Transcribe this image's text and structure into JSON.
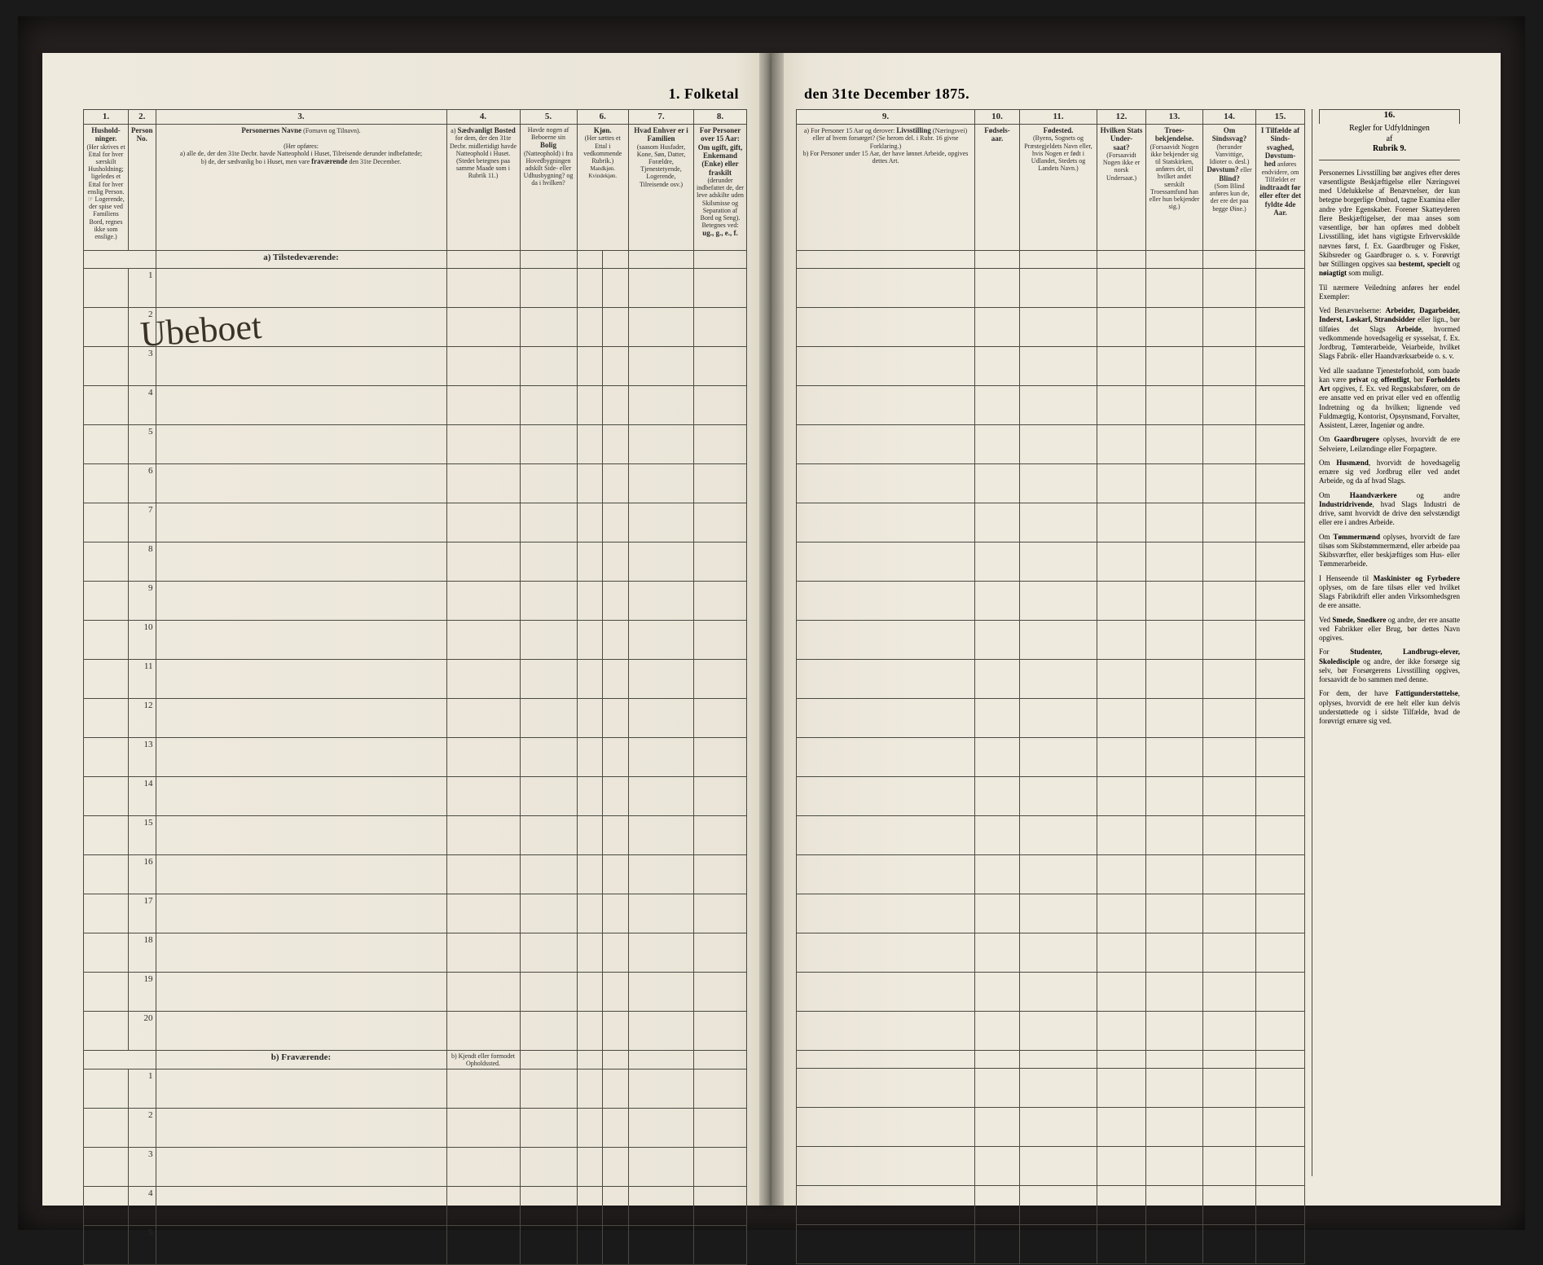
{
  "document": {
    "title_left": "1. Folketal",
    "title_right": "den 31te December 1875.",
    "handwritten_note": "Ubeboet"
  },
  "colors": {
    "paper": "#efeade",
    "ink": "#2a2a2a",
    "rule": "#4a4a42",
    "frame": "#1a1a1a"
  },
  "left_columns": [
    {
      "num": "1.",
      "head_html": "<b>Hushold-<br>ninger.</b><br>(Her skrives et Ettal for hver særskilt Husholdning; ligeledes et Ettal for hver enslig Person.<br>☞ Logerende, der spise ved Familiens Bord, regnes ikke som enslige.)",
      "w": "55"
    },
    {
      "num": "2.",
      "head_html": "<b>Person<br>No.</b>",
      "w": "26"
    },
    {
      "num": "3.",
      "head_html": "<b>Personernes Navne</b> (Fornavn og Tilnavn).<br><br>(Her opføres:<br>a) alle de, der den 31te Decbr. havde Natteophold i Huset, Tilreisende derunder indbefattede;<br>b) de, der sædvanlig bo i Huset, men vare <b>fraværende</b> den 31te December.",
      "w": "auto"
    },
    {
      "num": "4.",
      "head_html": "a) <b>Sædvanligt Bosted</b> for dem, der den 31te Decbr. midlertidigt havde Natteophold i Huset.<br>(Stedet betegnes paa samme Maade som i Rubrik 11.)",
      "w": "90"
    },
    {
      "num": "5.",
      "head_html": "Havde nogen af Beboerne sin <b>Bolig</b> (Natteophold) i fra Hovedbygningen adskilt Side- eller Udhusbygning? og da i hvilken?",
      "w": "70"
    },
    {
      "num": "6.",
      "head_html": "<b>Kjøn.</b><br>(Her sættes et Ettal i vedkommende Rubrik.)<br><span style='font-size:7px'>Mandkjøn. Kvindekjøn.</span>",
      "w": "50"
    },
    {
      "num": "7.",
      "head_html": "<b>Hvad Enhver er i Familien</b><br>(saasom Husfader, Kone, Søn, Datter, Forældre, Tjenestetyende, Logerende, Tilreisende osv.)",
      "w": "80"
    },
    {
      "num": "8.",
      "head_html": "<b>For Personer over 15 Aar: Om ugift, gift, Enkemand (Enke) eller fraskilt</b> (derunder indbefattet de, der leve adskilte uden Skilsmisse og Separation af Bord og Seng).<br>Betegnes ved:<br><b>ug., g., e., f.</b>",
      "w": "65"
    }
  ],
  "right_columns": [
    {
      "num": "9.",
      "head_html": "a) For Personer 15 Aar og derover: <b>Livsstilling</b> (Næringsvei) eller af hvem forsørget? (Se herom del. i Rubr. 16 givne Forklaring.)<br>b) For Personer under 15 Aar, der have lønnet Arbeide, opgives dettes Art.",
      "w": "auto"
    },
    {
      "num": "10.",
      "head_html": "<b>Fødsels-<br>aar.</b>",
      "w": "55"
    },
    {
      "num": "11.",
      "head_html": "<b>Fødested.</b><br>(Byens, Sognets og Præstegjeldets Navn eller, hvis Nogen er født i Udlandet, Stedets og Landets Navn.)",
      "w": "95"
    },
    {
      "num": "12.",
      "head_html": "<b>Hvilken Stats Under-<br>saat?</b><br>(Forsaavidt Nogen ikke er norsk Undersaat.)",
      "w": "60"
    },
    {
      "num": "13.",
      "head_html": "<b>Troes-<br>bekjendelse.</b><br>(Forsaavidt Nogen ikke bekjender sig til Statskirken, anføres det, til hvilket andet særskilt Troessamfund han eller hun bekjender sig.)",
      "w": "70"
    },
    {
      "num": "14.",
      "head_html": "<b>Om Sindssvag?</b><br>(herunder Vanvittige, Idioter o. desl.) <b>Døvstum?</b> eller <b>Blind?</b><br>(Som Blind anføres kun de, der ere det paa begge Øine.)",
      "w": "65"
    },
    {
      "num": "15.",
      "head_html": "<b>I Tilfælde af Sinds-<br>svaghed, Døvstum-<br>hed</b> anføres endvidere, om Tilfældet er <b>indtraadt før eller efter det fyldte 4de Aar.</b>",
      "w": "60"
    }
  ],
  "rules": {
    "num": "16.",
    "heading": "Regler for Udfyldningen<br>af<br><b>Rubrik 9.</b>",
    "paragraphs": [
      "Personernes Livsstilling bør angives efter deres væsentligste Beskjæftigelse eller Næringsvei med Udelukkelse af Benævnelser, der kun betegne borgerlige Ombud, tagne Examina eller andre ydre Egenskaber. Forener Skatteyderen flere Beskjæftigelser, der maa anses som væsentlige, bør han opføres med dobbelt Livsstilling, idet hans vigtigste Erhvervskilde nævnes først, f. Ex. Gaardbruger og Fisker, Skibsreder og Gaardbruger o. s. v. Forøvrigt bør Stillingen opgives saa <b>bestemt, specielt</b> og <b>nøiagtigt</b> som muligt.",
      "Til nærmere Veiledning anføres her endel Exempler:",
      "Ved Benævnelserne: <b>Arbeider, Dagarbeider, Inderst, Løskarl, Strandsidder</b> eller lign., bør tilføies det Slags <b>Arbeide</b>, hvormed vedkommende hovedsagelig er sysselsat, f. Ex. Jordbrug, Tømterarbeide, Veiarbeide, hvilket Slags Fabrik- eller Haandværksarbeide o. s. v.",
      "Ved alle saadanne Tjenesteforhold, som baade kan være <b>privat</b> og <b>offentligt</b>, bør <b>Forholdets Art</b> opgives, f. Ex. ved Regnskabsfører, om de ere ansatte ved en privat eller ved en offentlig Indretning og da hvilken; lignende ved Fuldmægtig, Kontorist, Opsynsmand, Forvalter, Assistent, Lærer, Ingeniør og andre.",
      "Om <b>Gaardbrugere</b> oplyses, hvorvidt de ere Selveiere, Leilændinge eller Forpagtere.",
      "Om <b>Husmænd</b>, hvorvidt de hovedsagelig ernære sig ved Jordbrug eller ved andet Arbeide, og da af hvad Slags.",
      "Om <b>Haandværkere</b> og andre <b>Industridrivende</b>, hvad Slags Industri de drive, samt hvorvidt de drive den selvstændigt eller ere i andres Arbeide.",
      "Om <b>Tømmermænd</b> oplyses, hvorvidt de fare tilsøs som Skibstømmermænd, eller arbeide paa Skibsværfter, eller beskjæftiges som Hus- eller Tømmerarbeide.",
      "I Henseende til <b>Maskinister og Fyrbødere</b> oplyses, om de fare tilsøs eller ved hvilket Slags Fabrikdrift eller anden Virksomhedsgren de ere ansatte.",
      "Ved <b>Smede, Snedkere</b> og andre, der ere ansatte ved Fabrikker eller Brug, bør dettes Navn opgives.",
      "For <b>Studenter, Landbrugs-elever, Skoledisciple</b> og andre, der ikke forsørge sig selv, bør Forsørgerens Livsstilling opgives, forsaavidt de bo sammen med denne.",
      "For dem, der have <b>Fattigunderstøttelse</b>, oplyses, hvorvidt de ere helt eller kun delvis understøttede og i sidste Tilfælde, hvad de forøvrigt ernære sig ved."
    ]
  },
  "sections": {
    "present": "a) Tilstedeværende:",
    "absent": "b) Fraværende:",
    "absent_col4": "b) Kjendt eller formodet Opholdssted."
  },
  "row_counts": {
    "present": 20,
    "absent": 5
  }
}
